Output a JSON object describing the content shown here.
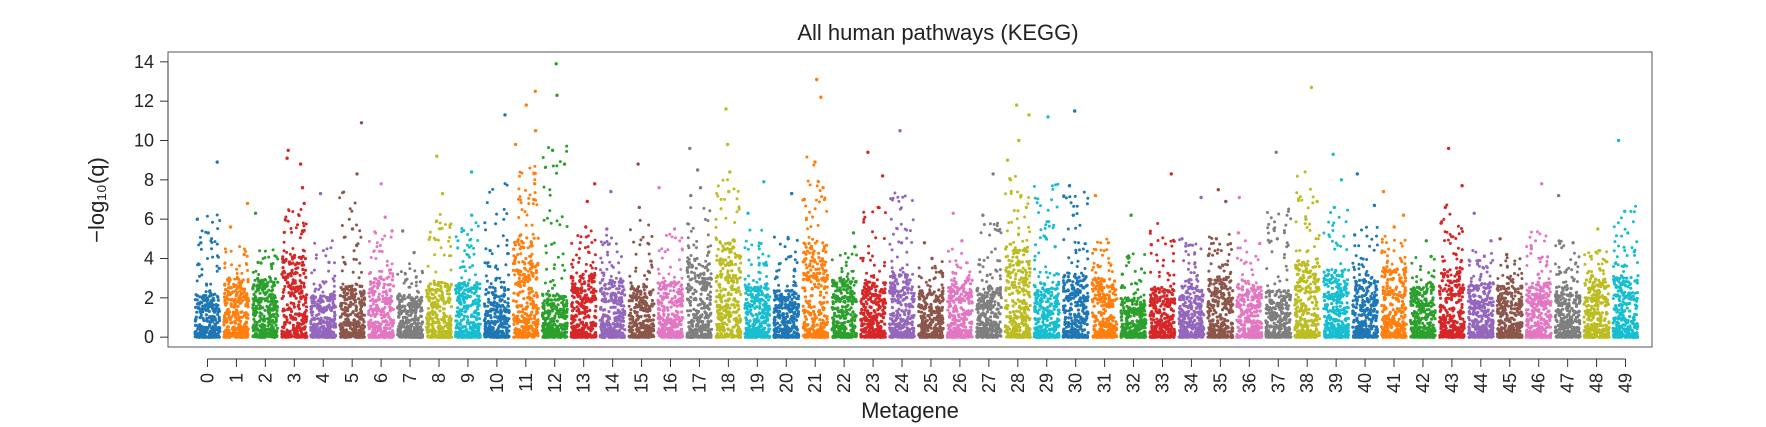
{
  "chart_data": {
    "type": "scatter",
    "title": "All human pathways (KEGG)",
    "xlabel": "Metagene",
    "ylabel": "−log₁₀(q)",
    "ylim": [
      -0.5,
      14.5
    ],
    "yticks": [
      0,
      2,
      4,
      6,
      8,
      10,
      12,
      14
    ],
    "categories": [
      "0",
      "1",
      "2",
      "3",
      "4",
      "5",
      "6",
      "7",
      "8",
      "9",
      "10",
      "11",
      "12",
      "13",
      "14",
      "15",
      "16",
      "17",
      "18",
      "19",
      "20",
      "21",
      "22",
      "23",
      "24",
      "25",
      "26",
      "27",
      "28",
      "29",
      "30",
      "31",
      "32",
      "33",
      "34",
      "35",
      "36",
      "37",
      "38",
      "39",
      "40",
      "41",
      "42",
      "43",
      "44",
      "45",
      "46",
      "47",
      "48",
      "49"
    ],
    "colors": [
      "#1f77b4",
      "#ff7f0e",
      "#2ca02c",
      "#d62728",
      "#9467bd",
      "#8c564b",
      "#e377c2",
      "#7f7f7f",
      "#bcbd22",
      "#17becf"
    ],
    "grid": false,
    "legend": "none",
    "series": [
      {
        "category": "0",
        "bulk_max": 2.2,
        "outliers": [
          4.8,
          5.3,
          8.9,
          6.0
        ]
      },
      {
        "category": "1",
        "bulk_max": 3.2,
        "outliers": [
          4.2,
          6.8,
          5.6
        ]
      },
      {
        "category": "2",
        "bulk_max": 3.0,
        "outliers": [
          3.8,
          6.3
        ]
      },
      {
        "category": "3",
        "bulk_max": 4.2,
        "outliers": [
          9.1,
          9.5,
          8.8,
          7.6,
          6.8,
          5.4
        ]
      },
      {
        "category": "4",
        "bulk_max": 2.2,
        "outliers": [
          3.8,
          7.3
        ]
      },
      {
        "category": "5",
        "bulk_max": 2.6,
        "outliers": [
          10.9,
          8.3,
          5.5
        ]
      },
      {
        "category": "6",
        "bulk_max": 3.0,
        "outliers": [
          6.1,
          7.8,
          5.4
        ]
      },
      {
        "category": "7",
        "bulk_max": 2.2,
        "outliers": [
          4.3,
          5.4
        ]
      },
      {
        "category": "8",
        "bulk_max": 2.8,
        "outliers": [
          9.2,
          7.3,
          5.9
        ]
      },
      {
        "category": "9",
        "bulk_max": 2.8,
        "outliers": [
          8.4,
          6.2
        ]
      },
      {
        "category": "10",
        "bulk_max": 2.6,
        "outliers": [
          11.3,
          4.4
        ]
      },
      {
        "category": "11",
        "bulk_max": 5.2,
        "outliers": [
          12.5,
          11.8,
          10.5,
          9.8,
          7.8,
          7.0
        ]
      },
      {
        "category": "12",
        "bulk_max": 2.2,
        "outliers": [
          8.8,
          13.9,
          12.3,
          9.5
        ]
      },
      {
        "category": "13",
        "bulk_max": 3.2,
        "outliers": [
          7.8,
          6.9,
          5.6
        ]
      },
      {
        "category": "14",
        "bulk_max": 3.0,
        "outliers": [
          7.4,
          5.5
        ]
      },
      {
        "category": "15",
        "bulk_max": 2.6,
        "outliers": [
          8.8,
          6.6
        ]
      },
      {
        "category": "16",
        "bulk_max": 2.8,
        "outliers": [
          7.6,
          5.5
        ]
      },
      {
        "category": "17",
        "bulk_max": 4.0,
        "outliers": [
          9.6,
          8.5,
          7.6,
          7.2
        ]
      },
      {
        "category": "18",
        "bulk_max": 5.0,
        "outliers": [
          11.6,
          9.8,
          8.4,
          7.4
        ]
      },
      {
        "category": "19",
        "bulk_max": 2.6,
        "outliers": [
          7.9,
          6.3
        ]
      },
      {
        "category": "20",
        "bulk_max": 2.4,
        "outliers": [
          7.3,
          5.0
        ]
      },
      {
        "category": "21",
        "bulk_max": 4.8,
        "outliers": [
          13.1,
          12.2,
          8.9,
          7.6,
          7.0
        ]
      },
      {
        "category": "22",
        "bulk_max": 3.0,
        "outliers": [
          5.3,
          4.6
        ]
      },
      {
        "category": "23",
        "bulk_max": 2.8,
        "outliers": [
          9.4,
          8.2,
          6.6
        ]
      },
      {
        "category": "24",
        "bulk_max": 3.2,
        "outliers": [
          10.5,
          4.8
        ]
      },
      {
        "category": "25",
        "bulk_max": 2.4,
        "outliers": [
          4.8,
          4.0
        ]
      },
      {
        "category": "26",
        "bulk_max": 3.0,
        "outliers": [
          6.3,
          4.9
        ]
      },
      {
        "category": "27",
        "bulk_max": 2.6,
        "outliers": [
          8.3,
          6.2
        ]
      },
      {
        "category": "28",
        "bulk_max": 4.6,
        "outliers": [
          11.8,
          11.3,
          10.0,
          9.0,
          8.0,
          7.2,
          6.6
        ]
      },
      {
        "category": "29",
        "bulk_max": 2.8,
        "outliers": [
          11.2,
          4.6
        ]
      },
      {
        "category": "30",
        "bulk_max": 3.2,
        "outliers": [
          11.5,
          7.7,
          6.2
        ]
      },
      {
        "category": "31",
        "bulk_max": 3.0,
        "outliers": [
          7.2,
          4.8
        ]
      },
      {
        "category": "32",
        "bulk_max": 2.0,
        "outliers": [
          6.2,
          3.2
        ]
      },
      {
        "category": "33",
        "bulk_max": 2.6,
        "outliers": [
          8.3,
          4.7
        ]
      },
      {
        "category": "34",
        "bulk_max": 2.6,
        "outliers": [
          7.1,
          5.0
        ]
      },
      {
        "category": "35",
        "bulk_max": 3.0,
        "outliers": [
          6.9,
          7.5,
          5.0
        ]
      },
      {
        "category": "36",
        "bulk_max": 2.6,
        "outliers": [
          7.1,
          5.3
        ]
      },
      {
        "category": "37",
        "bulk_max": 2.4,
        "outliers": [
          9.4,
          5.0
        ]
      },
      {
        "category": "38",
        "bulk_max": 3.8,
        "outliers": [
          12.7,
          6.9,
          6.0
        ]
      },
      {
        "category": "39",
        "bulk_max": 3.4,
        "outliers": [
          9.3,
          8.0,
          6.6
        ]
      },
      {
        "category": "40",
        "bulk_max": 3.0,
        "outliers": [
          8.3,
          6.7,
          5.2
        ]
      },
      {
        "category": "41",
        "bulk_max": 3.6,
        "outliers": [
          7.4,
          6.2,
          5.6
        ]
      },
      {
        "category": "42",
        "bulk_max": 2.6,
        "outliers": [
          4.9,
          4.1
        ]
      },
      {
        "category": "43",
        "bulk_max": 3.6,
        "outliers": [
          9.6,
          7.7,
          6.6,
          5.8
        ]
      },
      {
        "category": "44",
        "bulk_max": 2.8,
        "outliers": [
          6.3,
          4.9
        ]
      },
      {
        "category": "45",
        "bulk_max": 2.6,
        "outliers": [
          5.0,
          4.2
        ]
      },
      {
        "category": "46",
        "bulk_max": 2.8,
        "outliers": [
          7.8,
          4.5
        ]
      },
      {
        "category": "47",
        "bulk_max": 2.6,
        "outliers": [
          7.2,
          4.8
        ]
      },
      {
        "category": "48",
        "bulk_max": 3.0,
        "outliers": [
          5.5,
          4.4
        ]
      },
      {
        "category": "49",
        "bulk_max": 3.2,
        "outliers": [
          10.0,
          6.4,
          5.3
        ]
      }
    ]
  }
}
